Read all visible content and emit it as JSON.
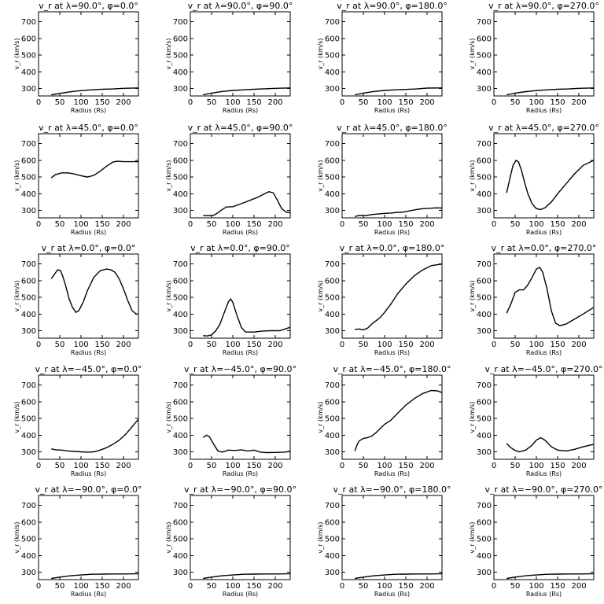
{
  "chart_data": [
    {
      "type": "line",
      "title": "v_r at λ=90.0°, φ=0.0°",
      "xlabel": "Radius (Rs)",
      "ylabel": "v_r (km/s)",
      "xlim": [
        0,
        235
      ],
      "ylim": [
        255,
        760
      ],
      "xticks": [
        0,
        50,
        100,
        150,
        200
      ],
      "yticks": [
        300,
        400,
        500,
        600,
        700
      ],
      "series": [
        {
          "x": [
            30,
            50,
            75,
            100,
            125,
            150,
            175,
            200,
            235
          ],
          "values": [
            262,
            270,
            280,
            287,
            292,
            295,
            297,
            301,
            303
          ]
        }
      ]
    },
    {
      "type": "line",
      "title": "v_r at λ=90.0°, φ=90.0°",
      "xlabel": "Radius (Rs)",
      "ylabel": "v_r (km/s)",
      "xlim": [
        0,
        235
      ],
      "ylim": [
        255,
        760
      ],
      "xticks": [
        0,
        50,
        100,
        150,
        200
      ],
      "yticks": [
        300,
        400,
        500,
        600,
        700
      ],
      "series": [
        {
          "x": [
            30,
            50,
            75,
            100,
            125,
            150,
            175,
            200,
            235
          ],
          "values": [
            262,
            272,
            282,
            288,
            292,
            295,
            298,
            301,
            303
          ]
        }
      ]
    },
    {
      "type": "line",
      "title": "v_r at λ=90.0°, φ=180.0°",
      "xlabel": "Radius (Rs)",
      "ylabel": "v_r (km/s)",
      "xlim": [
        0,
        235
      ],
      "ylim": [
        255,
        760
      ],
      "xticks": [
        0,
        50,
        100,
        150,
        200
      ],
      "yticks": [
        300,
        400,
        500,
        600,
        700
      ],
      "series": [
        {
          "x": [
            30,
            50,
            75,
            100,
            125,
            150,
            175,
            200,
            235
          ],
          "values": [
            262,
            272,
            282,
            288,
            292,
            294,
            297,
            302,
            303
          ]
        }
      ]
    },
    {
      "type": "line",
      "title": "v_r at λ=90.0°, φ=270.0°",
      "xlabel": "Radius (Rs)",
      "ylabel": "v_r (km/s)",
      "xlim": [
        0,
        235
      ],
      "ylim": [
        255,
        760
      ],
      "xticks": [
        0,
        50,
        100,
        150,
        200
      ],
      "yticks": [
        300,
        400,
        500,
        600,
        700
      ],
      "series": [
        {
          "x": [
            30,
            50,
            75,
            100,
            125,
            150,
            175,
            200,
            235
          ],
          "values": [
            262,
            272,
            281,
            287,
            292,
            295,
            297,
            301,
            303
          ]
        }
      ]
    },
    {
      "type": "line",
      "title": "v_r at λ=45.0°, φ=0.0°",
      "xlabel": "Radius (Rs)",
      "ylabel": "v_r (km/s)",
      "xlim": [
        0,
        235
      ],
      "ylim": [
        255,
        760
      ],
      "xticks": [
        0,
        50,
        100,
        150,
        200
      ],
      "yticks": [
        300,
        400,
        500,
        600,
        700
      ],
      "series": [
        {
          "x": [
            30,
            40,
            55,
            70,
            85,
            100,
            115,
            130,
            145,
            160,
            175,
            185,
            200,
            235
          ],
          "values": [
            495,
            515,
            525,
            525,
            518,
            508,
            500,
            510,
            535,
            565,
            590,
            595,
            592,
            592
          ]
        }
      ]
    },
    {
      "type": "line",
      "title": "v_r at λ=45.0°, φ=90.0°",
      "xlabel": "Radius (Rs)",
      "ylabel": "v_r (km/s)",
      "xlim": [
        0,
        235
      ],
      "ylim": [
        255,
        760
      ],
      "xticks": [
        0,
        50,
        100,
        150,
        200
      ],
      "yticks": [
        300,
        400,
        500,
        600,
        700
      ],
      "series": [
        {
          "x": [
            30,
            45,
            55,
            65,
            75,
            85,
            100,
            115,
            130,
            145,
            160,
            175,
            185,
            195,
            205,
            215,
            225,
            235
          ],
          "values": [
            268,
            268,
            270,
            285,
            305,
            320,
            322,
            335,
            350,
            365,
            380,
            400,
            412,
            405,
            360,
            310,
            290,
            285
          ]
        }
      ]
    },
    {
      "type": "line",
      "title": "v_r at λ=45.0°, φ=180.0°",
      "xlabel": "Radius (Rs)",
      "ylabel": "v_r (km/s)",
      "xlim": [
        0,
        235
      ],
      "ylim": [
        255,
        760
      ],
      "xticks": [
        0,
        50,
        100,
        150,
        200
      ],
      "yticks": [
        300,
        400,
        500,
        600,
        700
      ],
      "series": [
        {
          "x": [
            30,
            40,
            55,
            70,
            85,
            100,
            115,
            130,
            145,
            160,
            175,
            190,
            205,
            220,
            235
          ],
          "values": [
            262,
            270,
            268,
            275,
            278,
            282,
            284,
            288,
            290,
            298,
            305,
            310,
            312,
            315,
            314
          ]
        }
      ]
    },
    {
      "type": "line",
      "title": "v_r at λ=45.0°, φ=270.0°",
      "xlabel": "Radius (Rs)",
      "ylabel": "v_r (km/s)",
      "xlim": [
        0,
        235
      ],
      "ylim": [
        255,
        760
      ],
      "xticks": [
        0,
        50,
        100,
        150,
        200
      ],
      "yticks": [
        300,
        400,
        500,
        600,
        700
      ],
      "series": [
        {
          "x": [
            30,
            38,
            45,
            52,
            58,
            65,
            72,
            80,
            90,
            100,
            110,
            120,
            135,
            150,
            170,
            190,
            210,
            235
          ],
          "values": [
            405,
            495,
            570,
            600,
            590,
            540,
            470,
            400,
            340,
            310,
            305,
            315,
            350,
            400,
            460,
            520,
            570,
            600
          ]
        }
      ]
    },
    {
      "type": "line",
      "title": "v_r at λ=0.0°, φ=0.0°",
      "xlabel": "Radius (Rs)",
      "ylabel": "v_r (km/s)",
      "xlim": [
        0,
        235
      ],
      "ylim": [
        255,
        760
      ],
      "xticks": [
        0,
        50,
        100,
        150,
        200
      ],
      "yticks": [
        300,
        400,
        500,
        600,
        700
      ],
      "series": [
        {
          "x": [
            30,
            38,
            45,
            52,
            58,
            65,
            72,
            80,
            88,
            95,
            105,
            115,
            130,
            145,
            160,
            170,
            180,
            190,
            200,
            210,
            220,
            230,
            235
          ],
          "values": [
            612,
            640,
            665,
            660,
            620,
            560,
            490,
            440,
            410,
            420,
            470,
            540,
            620,
            660,
            670,
            665,
            650,
            610,
            550,
            480,
            420,
            400,
            400
          ]
        }
      ]
    },
    {
      "type": "line",
      "title": "v_r at λ=0.0°, φ=90.0°",
      "xlabel": "Radius (Rs)",
      "ylabel": "v_r (km/s)",
      "xlim": [
        0,
        235
      ],
      "ylim": [
        255,
        760
      ],
      "xticks": [
        0,
        50,
        100,
        150,
        200
      ],
      "yticks": [
        300,
        400,
        500,
        600,
        700
      ],
      "series": [
        {
          "x": [
            30,
            40,
            50,
            60,
            70,
            80,
            90,
            95,
            100,
            110,
            120,
            130,
            150,
            170,
            190,
            210,
            235
          ],
          "values": [
            270,
            268,
            275,
            300,
            340,
            410,
            475,
            490,
            470,
            390,
            320,
            292,
            292,
            298,
            300,
            300,
            320
          ]
        }
      ]
    },
    {
      "type": "line",
      "title": "v_r at λ=0.0°, φ=180.0°",
      "xlabel": "Radius (Rs)",
      "ylabel": "v_r (km/s)",
      "xlim": [
        0,
        235
      ],
      "ylim": [
        255,
        760
      ],
      "xticks": [
        0,
        50,
        100,
        150,
        200
      ],
      "yticks": [
        300,
        400,
        500,
        600,
        700
      ],
      "series": [
        {
          "x": [
            30,
            40,
            50,
            60,
            70,
            80,
            90,
            100,
            115,
            130,
            150,
            170,
            190,
            210,
            235
          ],
          "values": [
            308,
            310,
            305,
            315,
            340,
            360,
            380,
            410,
            460,
            520,
            580,
            630,
            665,
            690,
            700
          ]
        }
      ]
    },
    {
      "type": "line",
      "title": "v_r at λ=0.0°, φ=270.0°",
      "xlabel": "Radius (Rs)",
      "ylabel": "v_r (km/s)",
      "xlim": [
        0,
        235
      ],
      "ylim": [
        255,
        760
      ],
      "xticks": [
        0,
        50,
        100,
        150,
        200
      ],
      "yticks": [
        300,
        400,
        500,
        600,
        700
      ],
      "series": [
        {
          "x": [
            30,
            40,
            50,
            60,
            70,
            80,
            90,
            100,
            108,
            115,
            125,
            135,
            145,
            155,
            170,
            190,
            210,
            235
          ],
          "values": [
            405,
            460,
            530,
            545,
            545,
            575,
            620,
            670,
            680,
            650,
            550,
            420,
            345,
            330,
            340,
            370,
            400,
            440
          ]
        }
      ]
    },
    {
      "type": "line",
      "title": "v_r at λ=−45.0°, φ=0.0°",
      "xlabel": "Radius (Rs)",
      "ylabel": "v_r (km/s)",
      "xlim": [
        0,
        235
      ],
      "ylim": [
        255,
        760
      ],
      "xticks": [
        0,
        50,
        100,
        150,
        200
      ],
      "yticks": [
        300,
        400,
        500,
        600,
        700
      ],
      "series": [
        {
          "x": [
            30,
            40,
            55,
            70,
            85,
            100,
            115,
            130,
            145,
            160,
            175,
            190,
            205,
            220,
            235
          ],
          "values": [
            318,
            312,
            310,
            305,
            302,
            300,
            298,
            300,
            310,
            325,
            345,
            370,
            405,
            450,
            495
          ]
        }
      ]
    },
    {
      "type": "line",
      "title": "v_r at λ=−45.0°, φ=90.0°",
      "xlabel": "Radius (Rs)",
      "ylabel": "v_r (km/s)",
      "xlim": [
        0,
        235
      ],
      "ylim": [
        255,
        760
      ],
      "xticks": [
        0,
        50,
        100,
        150,
        200
      ],
      "yticks": [
        300,
        400,
        500,
        600,
        700
      ],
      "series": [
        {
          "x": [
            30,
            38,
            45,
            55,
            65,
            75,
            90,
            105,
            120,
            135,
            150,
            165,
            180,
            200,
            220,
            235
          ],
          "values": [
            385,
            400,
            390,
            345,
            305,
            298,
            310,
            308,
            312,
            305,
            310,
            298,
            295,
            296,
            298,
            302
          ]
        }
      ]
    },
    {
      "type": "line",
      "title": "v_r at λ=−45.0°, φ=180.0°",
      "xlabel": "Radius (Rs)",
      "ylabel": "v_r (km/s)",
      "xlim": [
        0,
        235
      ],
      "ylim": [
        255,
        760
      ],
      "xticks": [
        0,
        50,
        100,
        150,
        200
      ],
      "yticks": [
        300,
        400,
        500,
        600,
        700
      ],
      "series": [
        {
          "x": [
            30,
            35,
            40,
            50,
            60,
            70,
            80,
            90,
            100,
            115,
            130,
            150,
            170,
            190,
            210,
            225,
            235
          ],
          "values": [
            305,
            340,
            365,
            380,
            385,
            395,
            415,
            440,
            465,
            490,
            530,
            580,
            620,
            650,
            668,
            665,
            655
          ]
        }
      ]
    },
    {
      "type": "line",
      "title": "v_r at λ=−45.0°, φ=270.0°",
      "xlabel": "Radius (Rs)",
      "ylabel": "v_r (km/s)",
      "xlim": [
        0,
        235
      ],
      "ylim": [
        255,
        760
      ],
      "xticks": [
        0,
        50,
        100,
        150,
        200
      ],
      "yticks": [
        300,
        400,
        500,
        600,
        700
      ],
      "series": [
        {
          "x": [
            30,
            40,
            50,
            60,
            75,
            90,
            100,
            110,
            120,
            135,
            150,
            170,
            190,
            210,
            235
          ],
          "values": [
            350,
            325,
            308,
            300,
            310,
            340,
            370,
            385,
            370,
            330,
            310,
            305,
            315,
            330,
            345
          ]
        }
      ]
    },
    {
      "type": "line",
      "title": "v_r at λ=−90.0°, φ=0.0°",
      "xlabel": "Radius (Rs)",
      "ylabel": "v_r (km/s)",
      "xlim": [
        0,
        235
      ],
      "ylim": [
        255,
        760
      ],
      "xticks": [
        0,
        50,
        100,
        150,
        200
      ],
      "yticks": [
        300,
        400,
        500,
        600,
        700
      ],
      "series": [
        {
          "x": [
            30,
            50,
            75,
            100,
            125,
            150,
            175,
            200,
            235
          ],
          "values": [
            262,
            270,
            278,
            283,
            287,
            288,
            289,
            289,
            290
          ]
        }
      ]
    },
    {
      "type": "line",
      "title": "v_r at λ=−90.0°, φ=90.0°",
      "xlabel": "Radius (Rs)",
      "ylabel": "v_r (km/s)",
      "xlim": [
        0,
        235
      ],
      "ylim": [
        255,
        760
      ],
      "xticks": [
        0,
        50,
        100,
        150,
        200
      ],
      "yticks": [
        300,
        400,
        500,
        600,
        700
      ],
      "series": [
        {
          "x": [
            30,
            50,
            75,
            100,
            125,
            150,
            175,
            200,
            235
          ],
          "values": [
            262,
            270,
            278,
            283,
            287,
            288,
            289,
            289,
            290
          ]
        }
      ]
    },
    {
      "type": "line",
      "title": "v_r at λ=−90.0°, φ=180.0°",
      "xlabel": "Radius (Rs)",
      "ylabel": "v_r (km/s)",
      "xlim": [
        0,
        235
      ],
      "ylim": [
        255,
        760
      ],
      "xticks": [
        0,
        50,
        100,
        150,
        200
      ],
      "yticks": [
        300,
        400,
        500,
        600,
        700
      ],
      "series": [
        {
          "x": [
            30,
            50,
            75,
            100,
            125,
            150,
            175,
            200,
            235
          ],
          "values": [
            262,
            270,
            278,
            283,
            287,
            288,
            289,
            289,
            290
          ]
        }
      ]
    },
    {
      "type": "line",
      "title": "v_r at λ=−90.0°, φ=270.0°",
      "xlabel": "Radius (Rs)",
      "ylabel": "v_r (km/s)",
      "xlim": [
        0,
        235
      ],
      "ylim": [
        255,
        760
      ],
      "xticks": [
        0,
        50,
        100,
        150,
        200
      ],
      "yticks": [
        300,
        400,
        500,
        600,
        700
      ],
      "series": [
        {
          "x": [
            30,
            50,
            75,
            100,
            125,
            150,
            175,
            200,
            235
          ],
          "values": [
            262,
            270,
            278,
            283,
            287,
            288,
            289,
            289,
            290
          ]
        }
      ]
    }
  ]
}
